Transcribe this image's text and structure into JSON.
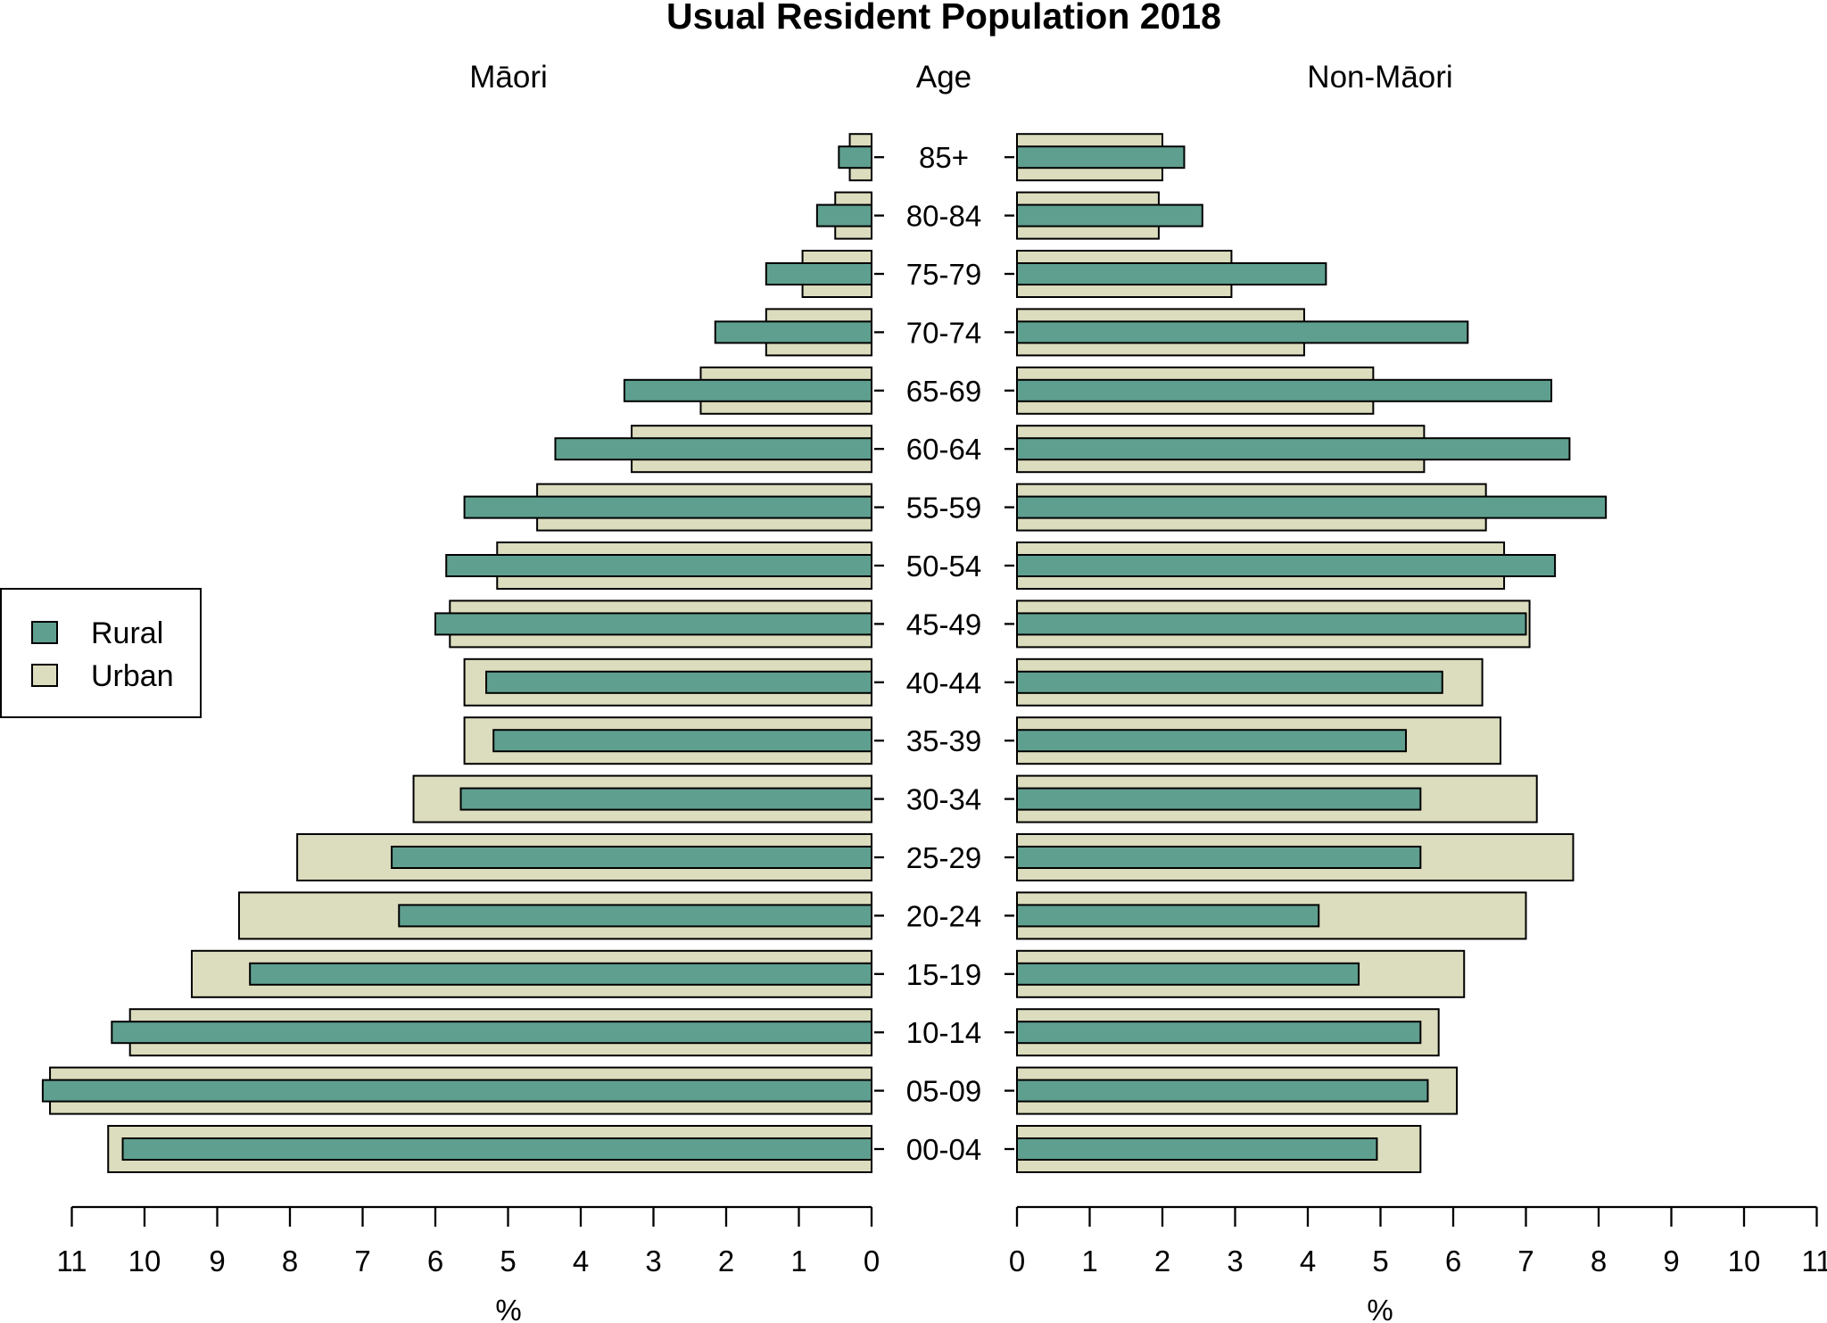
{
  "chart_data": {
    "type": "bar",
    "title": "Usual Resident Population 2018",
    "center_header": "Age",
    "categories": [
      "00-04",
      "05-09",
      "10-14",
      "15-19",
      "20-24",
      "25-29",
      "30-34",
      "35-39",
      "40-44",
      "45-49",
      "50-54",
      "55-59",
      "60-64",
      "65-69",
      "70-74",
      "75-79",
      "80-84",
      "85+"
    ],
    "panels": [
      {
        "header": "Māori",
        "xlabel": "%",
        "xlim": [
          0,
          11
        ],
        "ticks": [
          "0",
          "1",
          "2",
          "3",
          "4",
          "5",
          "6",
          "7",
          "8",
          "9",
          "10",
          "11"
        ],
        "direction": "left",
        "series": [
          {
            "name": "Urban",
            "values": [
              10.5,
              11.3,
              10.2,
              9.35,
              8.7,
              7.9,
              6.3,
              5.6,
              5.6,
              5.8,
              5.15,
              4.6,
              3.3,
              2.35,
              1.45,
              0.95,
              0.5,
              0.3
            ]
          },
          {
            "name": "Rural",
            "values": [
              10.3,
              11.4,
              10.45,
              8.55,
              6.5,
              6.6,
              5.65,
              5.2,
              5.3,
              6.0,
              5.85,
              5.6,
              4.35,
              3.4,
              2.15,
              1.45,
              0.75,
              0.45
            ]
          }
        ]
      },
      {
        "header": "Non-Māori",
        "xlabel": "%",
        "xlim": [
          0,
          11
        ],
        "ticks": [
          "0",
          "1",
          "2",
          "3",
          "4",
          "5",
          "6",
          "7",
          "8",
          "9",
          "10",
          "11"
        ],
        "direction": "right",
        "series": [
          {
            "name": "Urban",
            "values": [
              5.55,
              6.05,
              5.8,
              6.15,
              7.0,
              7.65,
              7.15,
              6.65,
              6.4,
              7.05,
              6.7,
              6.45,
              5.6,
              4.9,
              3.95,
              2.95,
              1.95,
              2.0
            ]
          },
          {
            "name": "Rural",
            "values": [
              4.95,
              5.65,
              5.55,
              4.7,
              4.15,
              5.55,
              5.55,
              5.35,
              5.85,
              7.0,
              7.4,
              8.1,
              7.6,
              7.35,
              6.2,
              4.25,
              2.55,
              2.3
            ]
          }
        ]
      }
    ],
    "legend": {
      "placement": "left",
      "items": [
        {
          "label": "Rural",
          "color": "#5f9f8f"
        },
        {
          "label": "Urban",
          "color": "#dcdcbe"
        }
      ]
    },
    "colors": {
      "rural": "#5f9f8f",
      "urban": "#dcdcbe"
    },
    "grid": false
  }
}
